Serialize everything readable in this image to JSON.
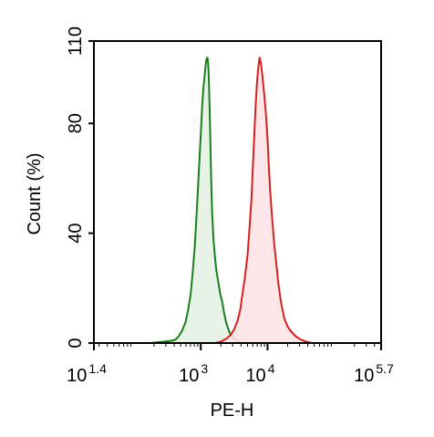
{
  "chart_data": {
    "type": "area",
    "title": "",
    "xlabel": "PE-H",
    "ylabel": "Count  (%)",
    "x_scale": "log10",
    "xlim": [
      1.4,
      5.7
    ],
    "ylim": [
      0,
      110
    ],
    "grid": false,
    "legend": "none",
    "y_ticks": [
      {
        "value": 0,
        "label": "0"
      },
      {
        "value": 40,
        "label": "40"
      },
      {
        "value": 80,
        "label": "80"
      },
      {
        "value": 110,
        "label": "110"
      }
    ],
    "x_ticks": [
      {
        "value": 1.4,
        "base": "10",
        "exp": "1.4"
      },
      {
        "value": 3,
        "base": "10",
        "exp": "3"
      },
      {
        "value": 4,
        "base": "10",
        "exp": "4"
      },
      {
        "value": 5.7,
        "base": "10",
        "exp": "5.7"
      }
    ],
    "series": [
      {
        "stroke": "#1a7f1a",
        "fill": "#e6f2e4",
        "x": [
          2.25,
          2.35,
          2.45,
          2.55,
          2.62,
          2.67,
          2.72,
          2.77,
          2.81,
          2.85,
          2.88,
          2.91,
          2.94,
          2.97,
          3.0,
          3.02,
          3.04,
          3.06,
          3.08,
          3.1,
          3.11,
          3.12,
          3.13,
          3.14,
          3.15,
          3.16,
          3.17,
          3.19,
          3.21,
          3.23,
          3.25,
          3.27,
          3.29,
          3.32,
          3.35,
          3.38,
          3.42,
          3.46,
          3.5,
          3.55,
          3.6,
          3.66
        ],
        "y": [
          0,
          0.3,
          0.5,
          0.8,
          1.2,
          2.5,
          4.5,
          7.5,
          12,
          18,
          26,
          35,
          48,
          62,
          76,
          86,
          93,
          98,
          103,
          104,
          102,
          97,
          88,
          78,
          66,
          56,
          47,
          38,
          32,
          27,
          24,
          21,
          18,
          15,
          11,
          7.5,
          4.5,
          2.5,
          1.5,
          0.8,
          0.4,
          0
        ]
      },
      {
        "stroke": "#d42020",
        "fill": "#fde3e6",
        "x": [
          3.22,
          3.3,
          3.38,
          3.45,
          3.5,
          3.55,
          3.59,
          3.62,
          3.66,
          3.7,
          3.73,
          3.76,
          3.78,
          3.8,
          3.82,
          3.84,
          3.86,
          3.88,
          3.9,
          3.92,
          3.94,
          3.96,
          3.98,
          4.0,
          4.02,
          4.04,
          4.06,
          4.08,
          4.1,
          4.13,
          4.16,
          4.2,
          4.25,
          4.3,
          4.36,
          4.42,
          4.5,
          4.58,
          4.66
        ],
        "y": [
          0,
          0.5,
          1.5,
          3,
          5,
          8,
          12,
          17,
          24,
          32,
          42,
          53,
          64,
          75,
          86,
          94,
          100,
          104,
          102,
          98,
          93,
          88,
          82,
          74,
          64,
          55,
          48,
          42,
          36,
          29,
          22,
          15,
          9,
          6,
          4,
          2.5,
          1.2,
          0.5,
          0
        ]
      }
    ]
  }
}
